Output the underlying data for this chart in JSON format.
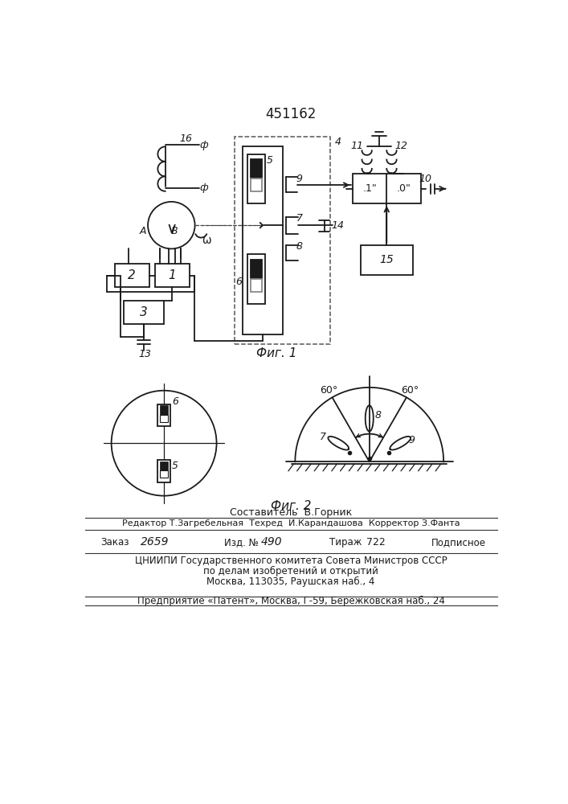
{
  "patent_number": "451162",
  "fig1_label": "Фиг. 1",
  "fig2_label": "Фиг. 2",
  "footer_line1": "Составитель  В.Горник",
  "footer_line2": "Редактор Т.Загребельная  Техред  И.Карандашова  Корректор З.Фанта",
  "footer_line4": "ЦНИИПИ Государственного комитета Совета Министров СССР",
  "footer_line5": "по делам изобретений и открытий",
  "footer_line6": "Москва, 113035, Раушская наб., 4",
  "footer_line7": "Предприятие «Патент», Москва, Г-59, Бережковская наб., 24",
  "line_color": "#1a1a1a"
}
